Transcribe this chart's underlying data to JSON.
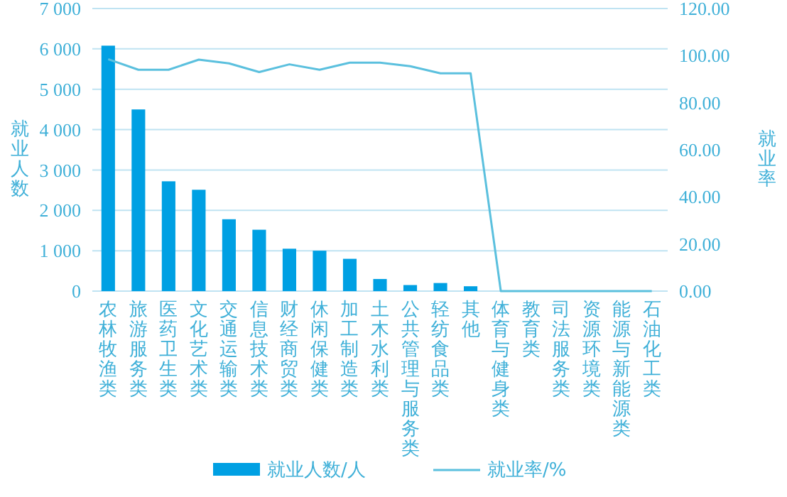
{
  "chart_data": {
    "type": "bar",
    "ylabel": "就业人数",
    "y2label": "就业率",
    "categories": [
      "农林牧渔类",
      "旅游服务类",
      "医药卫生类",
      "文化艺术类",
      "交通运输类",
      "信息技术类",
      "财经商贸类",
      "休闲保健类",
      "加工制造类",
      "土木水利类",
      "公共管理与服务类",
      "轻纺食品类",
      "其他",
      "体育与健身类",
      "教育类",
      "司法服务类",
      "资源环境类",
      "能源与新能源类",
      "石油化工类"
    ],
    "series": [
      {
        "name": "就业人数/人",
        "color": "#00a0e3",
        "values": [
          6080,
          4500,
          2720,
          2510,
          1780,
          1520,
          1050,
          1000,
          800,
          300,
          150,
          200,
          120,
          0,
          0,
          0,
          0,
          0,
          0
        ]
      },
      {
        "name": "就业率/%",
        "type": "line",
        "axis": "y2",
        "color": "#5bc0de",
        "values": [
          98.5,
          94,
          94,
          98.3,
          96.7,
          93,
          96.3,
          94,
          97,
          97,
          95.5,
          92.5,
          92.5,
          0,
          0,
          0,
          0,
          0,
          0
        ]
      }
    ],
    "ylim": [
      0,
      7000
    ],
    "yticks": [
      0,
      {
        "value": 1000,
        "label": "1 000"
      },
      {
        "value": 2000,
        "label": "2 000"
      },
      {
        "value": 3000,
        "label": "3 000"
      },
      {
        "value": 4000,
        "label": "4 000"
      },
      {
        "value": 5000,
        "label": "5 000"
      },
      {
        "value": 6000,
        "label": "6 000"
      },
      {
        "value": 7000,
        "label": "7 000"
      }
    ],
    "y2lim": [
      0,
      120
    ],
    "y2ticks": [
      {
        "value": 0,
        "label": "0.00"
      },
      {
        "value": 20,
        "label": "20.00"
      },
      {
        "value": 40,
        "label": "40.00"
      },
      {
        "value": 60,
        "label": "60.00"
      },
      {
        "value": 80,
        "label": "80.00"
      },
      {
        "value": 100,
        "label": "100.00"
      },
      {
        "value": 120,
        "label": "120.00"
      }
    ],
    "grid": "y",
    "legend": "bottom",
    "marker": "none",
    "line_style": "solid"
  }
}
